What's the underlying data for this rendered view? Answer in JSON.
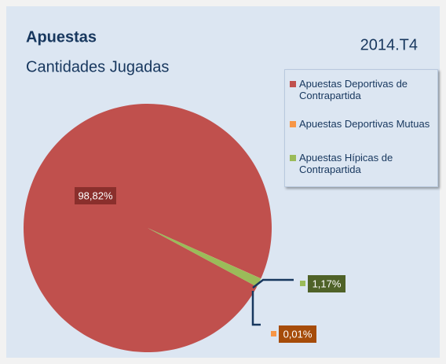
{
  "chart_data": {
    "type": "pie",
    "title": "Apuestas",
    "subtitle": "Cantidades Jugadas",
    "annotation": "2014.T4",
    "categories": [
      "Apuestas Deportivas de Contrapartida",
      "Apuestas Deportivas Mutuas",
      "Apuestas Hípicas de Contrapartida"
    ],
    "values": [
      98.82,
      0.01,
      1.17
    ],
    "value_labels": [
      "98,82%",
      "0,01%",
      "1,17%"
    ],
    "colors": [
      "#c0504d",
      "#f79646",
      "#9bbb59"
    ]
  }
}
